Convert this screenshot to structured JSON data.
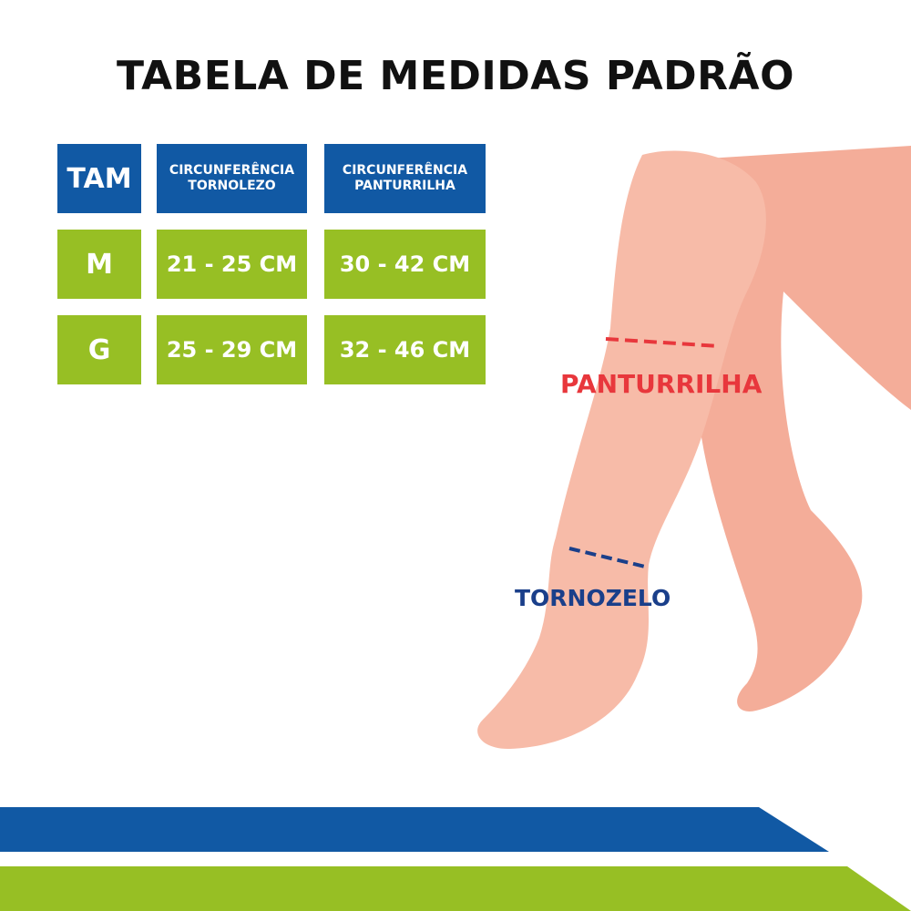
{
  "title": "TABELA DE MEDIDAS PADRÃO",
  "table": {
    "headers": [
      "TAM",
      "CIRCUNFERÊNCIA TORNOLEZO",
      "CIRCUNFERÊNCIA PANTURRILHA"
    ],
    "rows": [
      [
        "M",
        "21 - 25 CM",
        "30 - 42 CM"
      ],
      [
        "G",
        "25 - 29 CM",
        "32 - 46 CM"
      ]
    ]
  },
  "labels": {
    "calf": "PANTURRILHA",
    "ankle": "TORNOZELO"
  },
  "colors": {
    "blue": "#1159a4",
    "green": "#97bf24",
    "skin": "#f7bba8",
    "calf_line": "#e8373c",
    "ankle_line": "#1a3f8a"
  }
}
